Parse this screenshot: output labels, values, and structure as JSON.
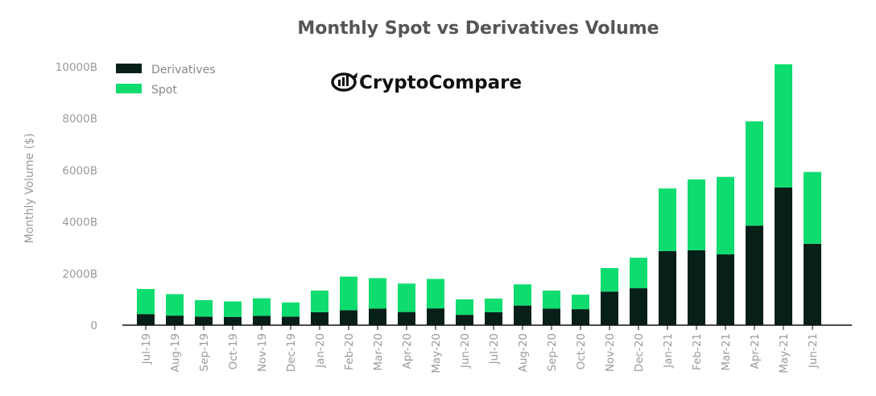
{
  "chart_data": {
    "type": "bar",
    "stacked": true,
    "title": "Monthly Spot vs Derivatives Volume",
    "ylabel": "Monthly Volume ($)",
    "xlabel": "",
    "ylim": [
      0,
      10000
    ],
    "yticks": [
      {
        "value": 0,
        "label": "0"
      },
      {
        "value": 2000,
        "label": "2000B"
      },
      {
        "value": 4000,
        "label": "4000B"
      },
      {
        "value": 6000,
        "label": "6000B"
      },
      {
        "value": 8000,
        "label": "8000B"
      },
      {
        "value": 10000,
        "label": "10000B"
      }
    ],
    "categories": [
      "Jul-19",
      "Aug-19",
      "Sep-19",
      "Oct-19",
      "Nov-19",
      "Dec-19",
      "Jan-20",
      "Feb-20",
      "Mar-20",
      "Apr-20",
      "May-20",
      "Jun-20",
      "Jul-20",
      "Aug-20",
      "Sep-20",
      "Oct-20",
      "Nov-20",
      "Dec-20",
      "Jan-21",
      "Feb-21",
      "Mar-21",
      "Apr-21",
      "May-21",
      "Jun-21"
    ],
    "series": [
      {
        "name": "Derivatives",
        "color": "#062019",
        "values": [
          430,
          370,
          330,
          320,
          360,
          330,
          500,
          580,
          640,
          510,
          650,
          400,
          500,
          760,
          640,
          620,
          1300,
          1430,
          2870,
          2900,
          2740,
          3850,
          5330,
          3150
        ]
      },
      {
        "name": "Spot",
        "color": "#0fdc6f",
        "values": [
          970,
          830,
          640,
          600,
          680,
          550,
          840,
          1300,
          1180,
          1100,
          1140,
          600,
          530,
          820,
          700,
          560,
          910,
          1180,
          2420,
          2740,
          3000,
          4040,
          4770,
          2780
        ]
      }
    ],
    "legend_position": "top-left",
    "grid": false
  },
  "watermark": {
    "text": "CryptoCompare",
    "icon": "cryptocompare-logo-icon"
  }
}
